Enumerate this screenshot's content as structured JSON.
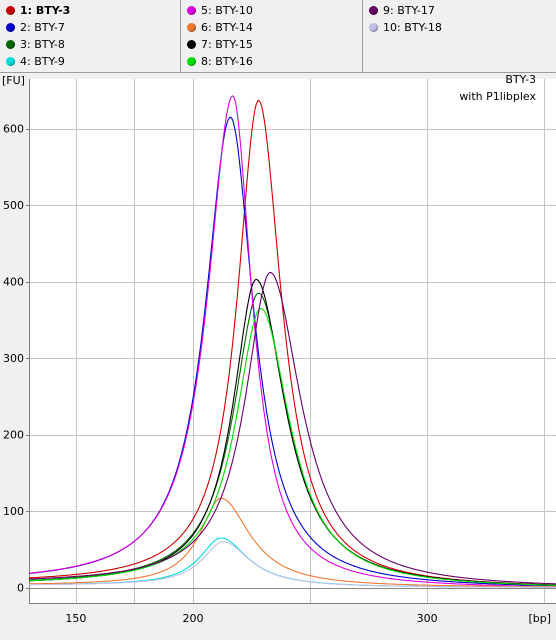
{
  "legend": {
    "columns": [
      [
        {
          "label": "1: BTY-3",
          "color": "#cc0000",
          "bold": true
        },
        {
          "label": "2: BTY-7",
          "color": "#0000cc"
        },
        {
          "label": "3: BTY-8",
          "color": "#006600"
        },
        {
          "label": "4: BTY-9",
          "color": "#00dddd"
        }
      ],
      [
        {
          "label": "5: BTY-10",
          "color": "#dd00dd"
        },
        {
          "label": "6: BTY-14",
          "color": "#ee7733"
        },
        {
          "label": "7: BTY-15",
          "color": "#000000"
        },
        {
          "label": "8: BTY-16",
          "color": "#00dd00"
        }
      ],
      [
        {
          "label": "9: BTY-17",
          "color": "#660066"
        },
        {
          "label": "10: BTY-18",
          "color": "#c0c0e8"
        }
      ]
    ]
  },
  "plot": {
    "sample_title": "BTY-3",
    "kit_label": "with P1libplex",
    "ylabel": "[FU]",
    "xlabel": "[bp]"
  },
  "chart_data": {
    "type": "line",
    "xlim": [
      130,
      355
    ],
    "ylim": [
      -20,
      665
    ],
    "xticks": [
      150,
      200,
      300
    ],
    "yticks": [
      0,
      100,
      200,
      300,
      400,
      500,
      600
    ],
    "x_grid": [
      150,
      175,
      200,
      250,
      300,
      350
    ],
    "grid": true,
    "baseline": 0,
    "series": [
      {
        "name": "1: BTY-3",
        "color": "#cc0000",
        "peak_x": 228,
        "peak_y": 637,
        "width_left": 11,
        "width_right": 12,
        "base_left": 5,
        "base_right": -2
      },
      {
        "name": "2: BTY-7",
        "color": "#0000cc",
        "peak_x": 216,
        "peak_y": 615,
        "width_left": 13,
        "width_right": 12,
        "base_left": 5,
        "base_right": -2
      },
      {
        "name": "3: BTY-8",
        "color": "#006600",
        "peak_x": 228,
        "peak_y": 385,
        "width_left": 13,
        "width_right": 15,
        "base_left": 3,
        "base_right": -2
      },
      {
        "name": "4: BTY-9",
        "color": "#00dddd",
        "peak_x": 212,
        "peak_y": 65,
        "width_left": 11,
        "width_right": 14,
        "base_left": 3,
        "base_right": 0
      },
      {
        "name": "5: BTY-10",
        "color": "#dd00dd",
        "peak_x": 217,
        "peak_y": 643,
        "width_left": 13,
        "width_right": 10,
        "base_left": 5,
        "base_right": -2
      },
      {
        "name": "6: BTY-14",
        "color": "#ee7733",
        "peak_x": 212,
        "peak_y": 117,
        "width_left": 11,
        "width_right": 15,
        "base_left": 3,
        "base_right": 0
      },
      {
        "name": "7: BTY-15",
        "color": "#000000",
        "peak_x": 227,
        "peak_y": 403,
        "width_left": 12,
        "width_right": 15,
        "base_left": 3,
        "base_right": -2
      },
      {
        "name": "8: BTY-16",
        "color": "#00dd00",
        "peak_x": 229,
        "peak_y": 365,
        "width_left": 13,
        "width_right": 15,
        "base_left": 3,
        "base_right": -2
      },
      {
        "name": "9: BTY-17",
        "color": "#660066",
        "peak_x": 233,
        "peak_y": 412,
        "width_left": 13,
        "width_right": 16,
        "base_left": 5,
        "base_right": -2
      },
      {
        "name": "10: BTY-18",
        "color": "#c0c0e8",
        "peak_x": 213,
        "peak_y": 60,
        "width_left": 11,
        "width_right": 14,
        "base_left": 3,
        "base_right": 0
      }
    ]
  }
}
